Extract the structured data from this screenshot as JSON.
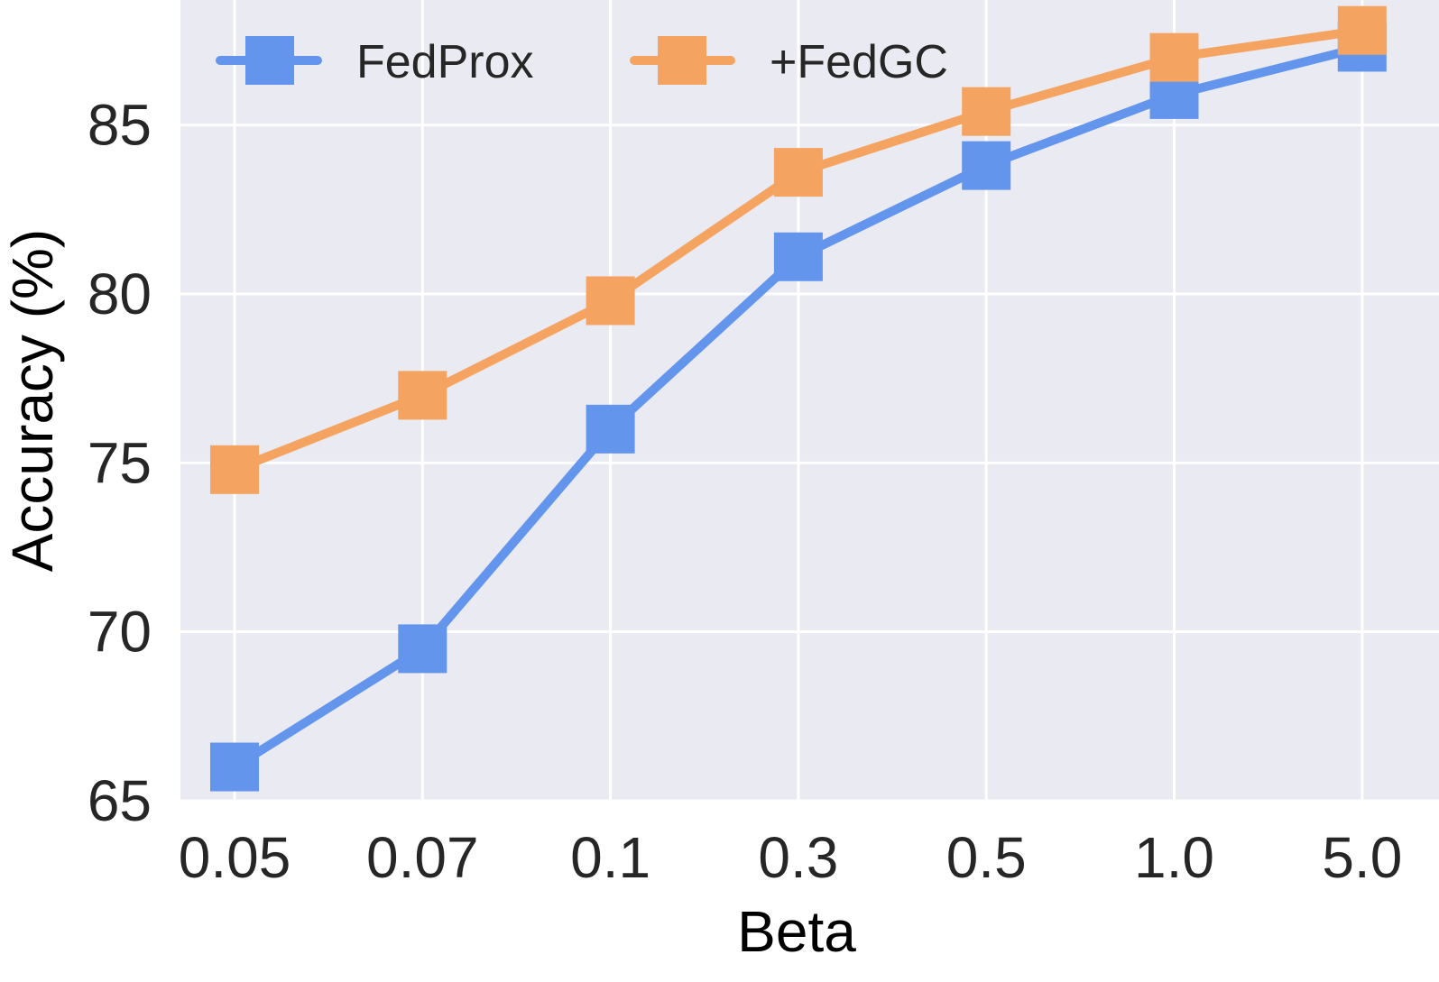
{
  "chart_data": {
    "type": "line",
    "title": "",
    "xlabel": "Beta",
    "ylabel": "Accuracy (%)",
    "categories": [
      "0.05",
      "0.07",
      "0.1",
      "0.3",
      "0.5",
      "1.0",
      "5.0"
    ],
    "ylim": [
      65,
      88.7
    ],
    "yticks": [
      65,
      70,
      75,
      80,
      85
    ],
    "grid": true,
    "legend_position": "top",
    "series": [
      {
        "name": "FedProx",
        "color": "#6495ED",
        "marker": "square",
        "values": [
          66.0,
          69.5,
          76.0,
          81.1,
          83.8,
          85.9,
          87.3
        ]
      },
      {
        "name": "+FedGC",
        "color": "#F4A460",
        "marker": "square",
        "values": [
          74.8,
          77.0,
          79.8,
          83.6,
          85.4,
          87.0,
          87.8
        ]
      }
    ]
  }
}
